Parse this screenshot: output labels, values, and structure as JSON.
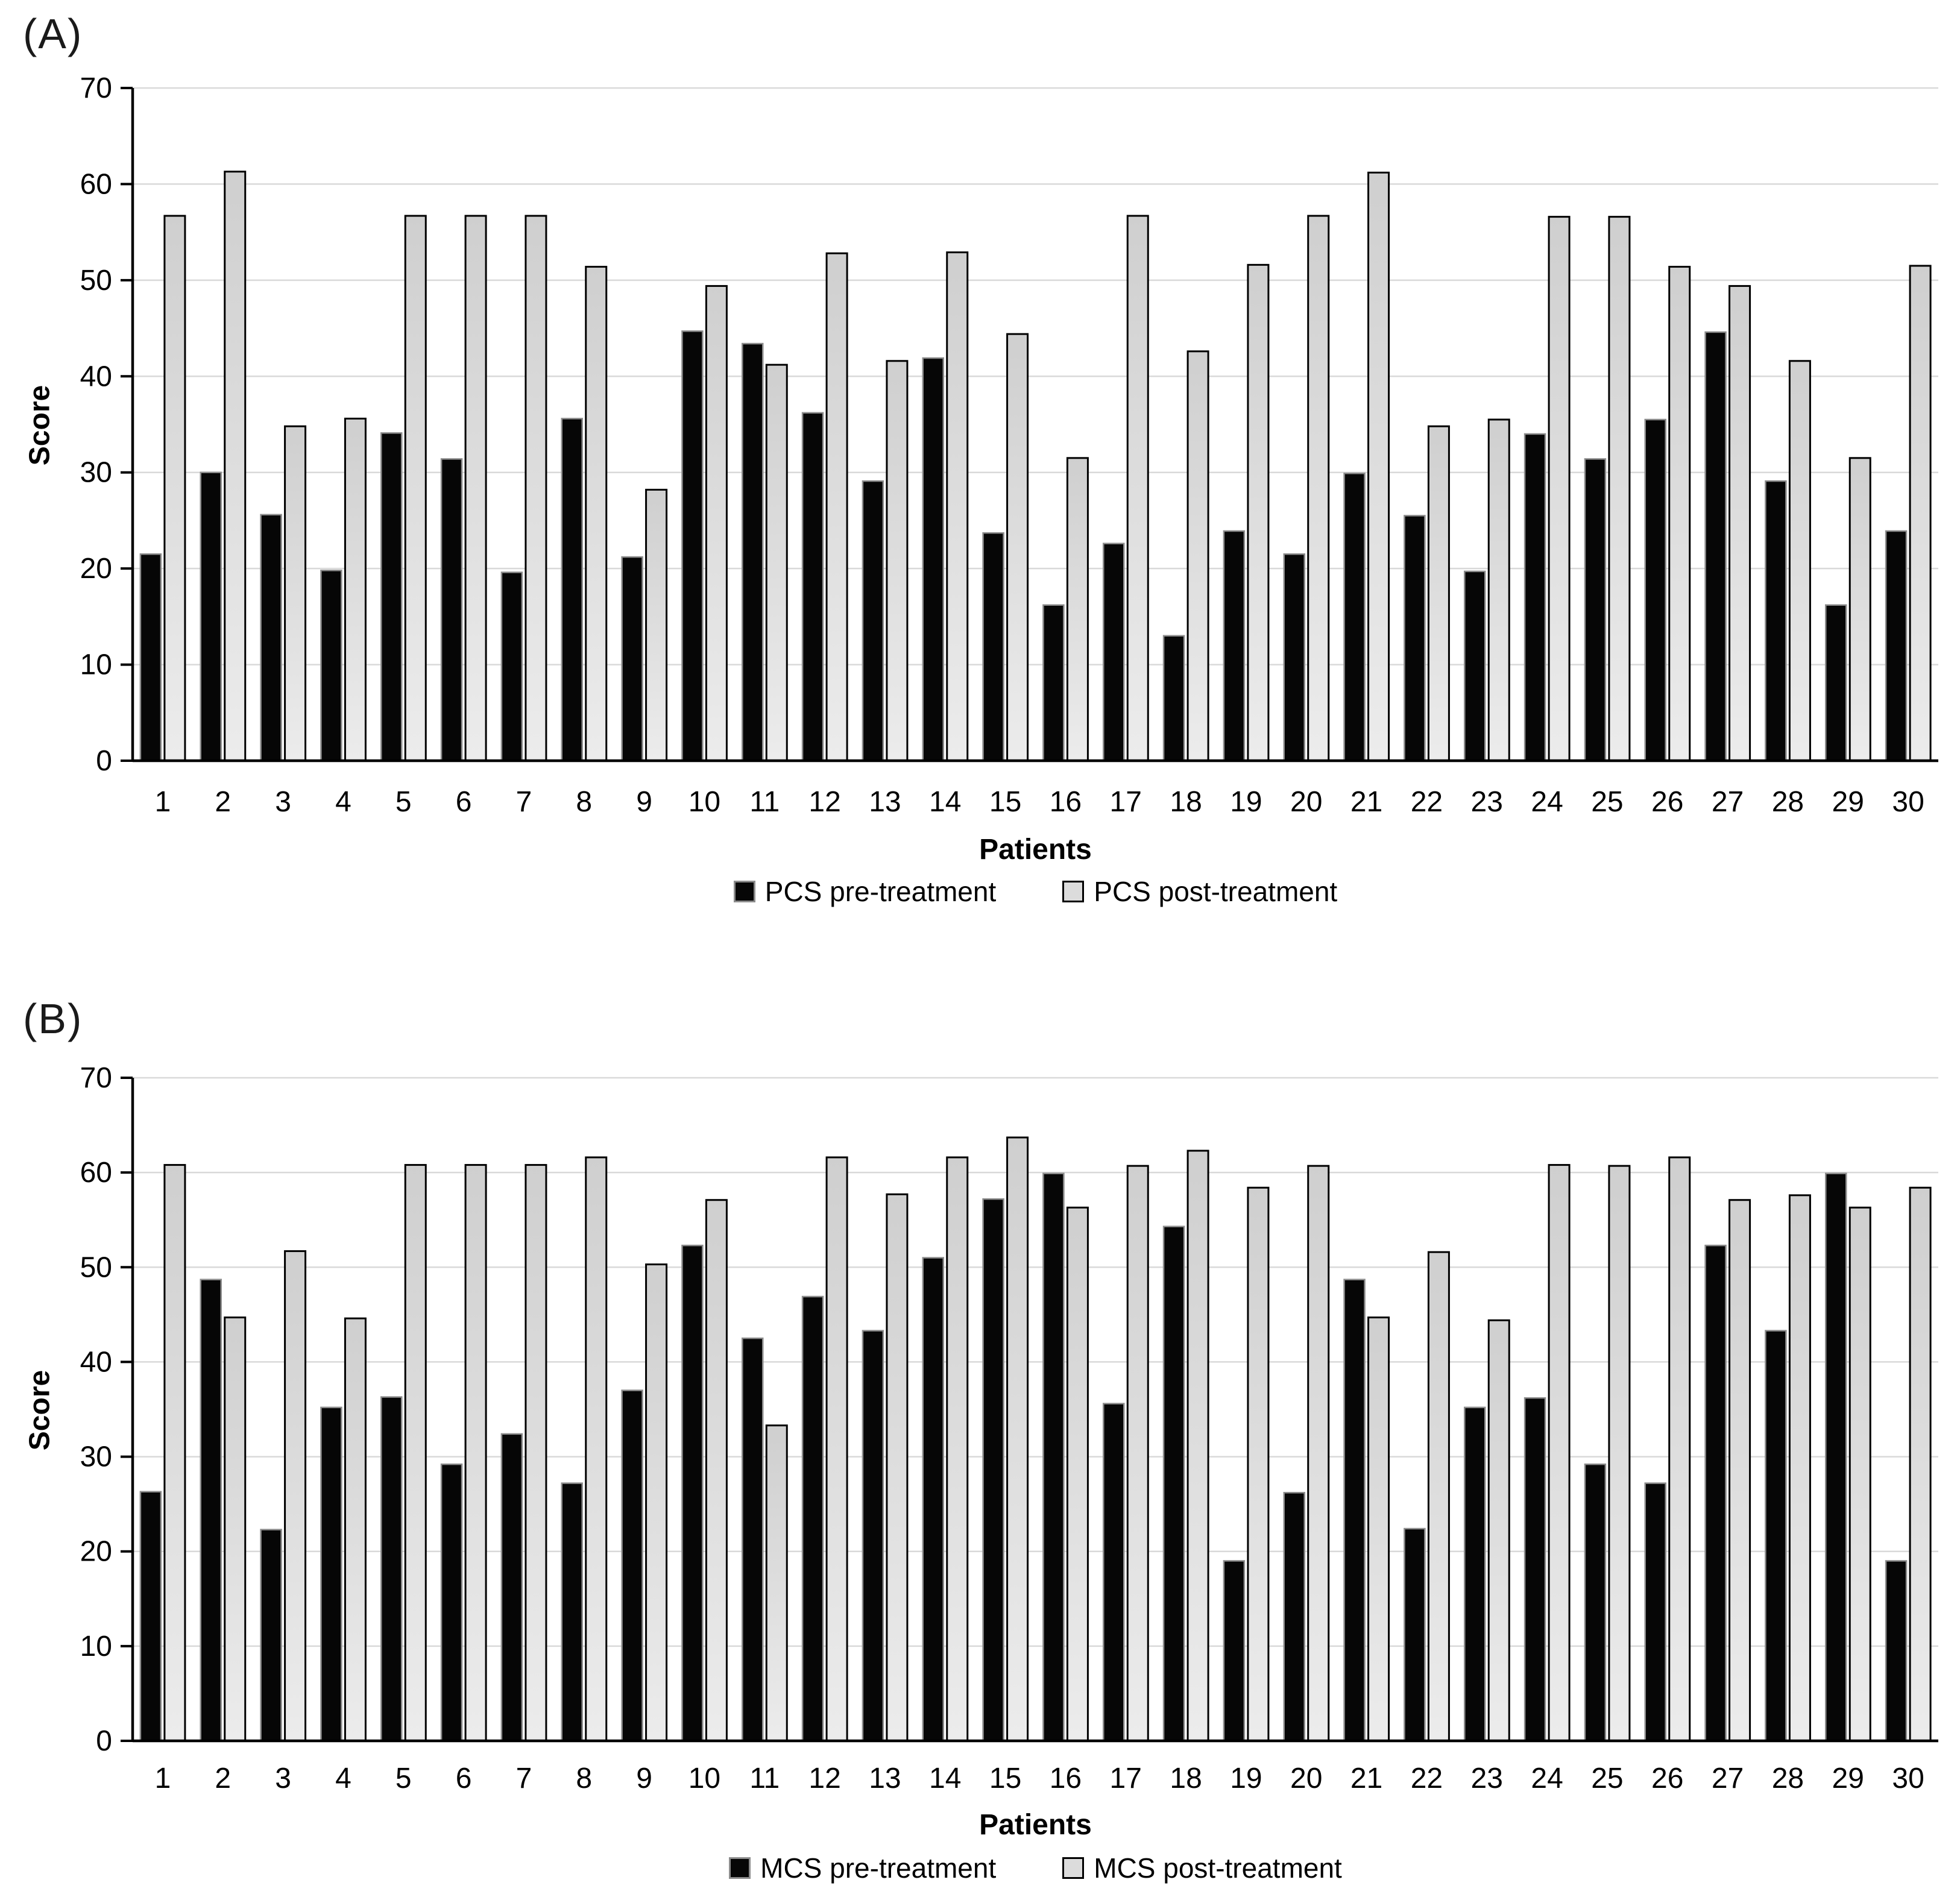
{
  "figure": {
    "panels": [
      {
        "id": "A",
        "panel_label": "(A)",
        "ylabel": "Score",
        "xlabel": "Patients",
        "legend": [
          {
            "label": "PCS pre-treatment",
            "swatch": "pre"
          },
          {
            "label": "PCS post-treatment",
            "swatch": "post"
          }
        ]
      },
      {
        "id": "B",
        "panel_label": "(B)",
        "ylabel": "Score",
        "xlabel": "Patients",
        "legend": [
          {
            "label": "MCS pre-treatment",
            "swatch": "pre"
          },
          {
            "label": "MCS post-treatment",
            "swatch": "post"
          }
        ]
      }
    ]
  },
  "colors": {
    "pre_fill": "#060606",
    "pre_stroke": "#8c8c8c",
    "post_fill_top": "#cfcfcf",
    "post_fill_bottom": "#ececec",
    "post_stroke": "#000000",
    "gridline": "#d9d9d9",
    "axis": "#000000"
  },
  "chart_data": [
    {
      "type": "bar",
      "title": "(A)",
      "categories": [
        "1",
        "2",
        "3",
        "4",
        "5",
        "6",
        "7",
        "8",
        "9",
        "10",
        "11",
        "12",
        "13",
        "14",
        "15",
        "16",
        "17",
        "18",
        "19",
        "20",
        "21",
        "22",
        "23",
        "24",
        "25",
        "26",
        "27",
        "28",
        "29",
        "30"
      ],
      "series": [
        {
          "name": "PCS pre-treatment",
          "values": [
            21.5,
            30.0,
            25.6,
            19.8,
            34.1,
            31.4,
            19.6,
            35.6,
            21.2,
            44.7,
            43.4,
            36.2,
            29.1,
            41.9,
            23.7,
            16.2,
            22.6,
            13.0,
            23.9,
            21.5,
            29.9,
            25.5,
            19.7,
            34.0,
            31.4,
            35.5,
            44.6,
            29.1,
            16.2,
            23.9
          ]
        },
        {
          "name": "PCS post-treatment",
          "values": [
            56.7,
            61.3,
            34.8,
            35.6,
            56.7,
            56.7,
            56.7,
            51.4,
            28.2,
            49.4,
            41.2,
            52.8,
            41.6,
            52.9,
            44.4,
            31.5,
            56.7,
            42.6,
            51.6,
            56.7,
            61.2,
            34.8,
            35.5,
            56.6,
            56.6,
            51.4,
            49.4,
            41.6,
            31.5,
            51.5
          ]
        }
      ],
      "xlabel": "Patients",
      "ylabel": "Score",
      "ylim": [
        0,
        70
      ],
      "ytick_step": 10,
      "grid": true,
      "legend_position": "bottom"
    },
    {
      "type": "bar",
      "title": "(B)",
      "categories": [
        "1",
        "2",
        "3",
        "4",
        "5",
        "6",
        "7",
        "8",
        "9",
        "10",
        "11",
        "12",
        "13",
        "14",
        "15",
        "16",
        "17",
        "18",
        "19",
        "20",
        "21",
        "22",
        "23",
        "24",
        "25",
        "26",
        "27",
        "28",
        "29",
        "30"
      ],
      "series": [
        {
          "name": "MCS pre-treatment",
          "values": [
            26.3,
            48.7,
            22.3,
            35.2,
            36.3,
            29.2,
            32.4,
            27.2,
            37.0,
            52.3,
            42.5,
            46.9,
            43.3,
            51.0,
            57.2,
            59.9,
            35.6,
            54.3,
            19.0,
            26.2,
            48.7,
            22.4,
            35.2,
            36.2,
            29.2,
            27.2,
            52.3,
            43.3,
            59.9,
            19.0
          ]
        },
        {
          "name": "MCS post-treatment",
          "values": [
            60.8,
            44.7,
            51.7,
            44.6,
            60.8,
            60.8,
            60.8,
            61.6,
            50.3,
            57.1,
            33.3,
            61.6,
            57.7,
            61.6,
            63.7,
            56.3,
            60.7,
            62.3,
            58.4,
            60.7,
            44.7,
            51.6,
            44.4,
            60.8,
            60.7,
            61.6,
            57.1,
            57.6,
            56.3,
            58.4
          ]
        }
      ],
      "xlabel": "Patients",
      "ylabel": "Score",
      "ylim": [
        0,
        70
      ],
      "ytick_step": 10,
      "grid": true,
      "legend_position": "bottom"
    }
  ]
}
